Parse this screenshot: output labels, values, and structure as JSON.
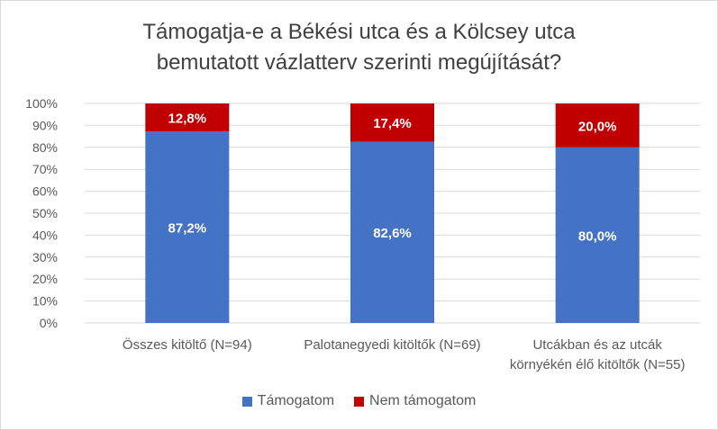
{
  "chart_data": {
    "type": "bar",
    "stacked": true,
    "percent": true,
    "title": [
      "Támogatja-e a Békési utca és a Kölcsey utca",
      "bemutatott vázlatterv szerinti megújítását?"
    ],
    "categories": [
      [
        "Összes kitöltő (N=94)"
      ],
      [
        "Palotanegyedi kitöltők (N=69)"
      ],
      [
        "Utcákban és az utcák",
        "környékén élő kitöltők (N=55)"
      ]
    ],
    "series": [
      {
        "name": "Támogatom",
        "values": [
          87.2,
          82.6,
          80.0
        ],
        "labels": [
          "87,2%",
          "82,6%",
          "80,0%"
        ],
        "color": "#4472c4"
      },
      {
        "name": "Nem támogatom",
        "values": [
          12.8,
          17.4,
          20.0
        ],
        "labels": [
          "12,8%",
          "17,4%",
          "20,0%"
        ],
        "color": "#c00000"
      }
    ],
    "ylim": [
      0,
      100
    ],
    "yticks": [
      "0%",
      "10%",
      "20%",
      "30%",
      "40%",
      "50%",
      "60%",
      "70%",
      "80%",
      "90%",
      "100%"
    ],
    "grid": true,
    "legend_position": "bottom"
  }
}
